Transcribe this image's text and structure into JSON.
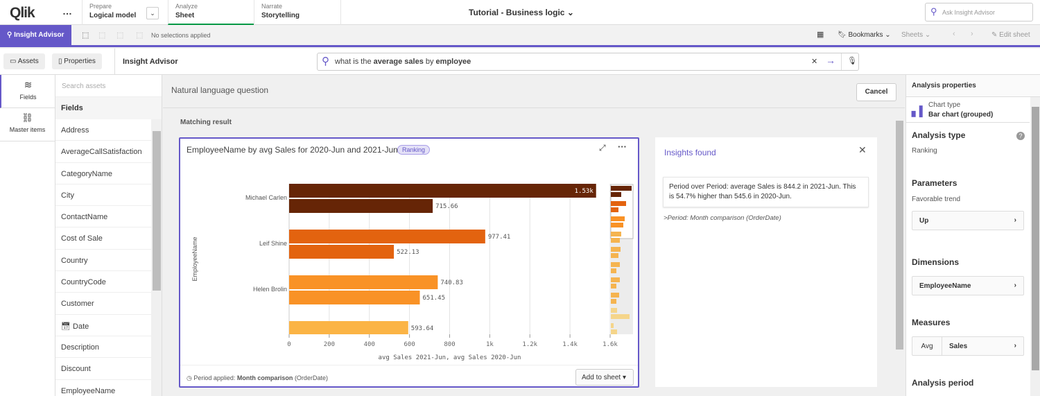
{
  "topbar": {
    "logo": "Qlik",
    "menu": "…",
    "prepare_label": "Prepare",
    "prepare_value": "Logical model",
    "analyze_label": "Analyze",
    "analyze_value": "Sheet",
    "narrate_label": "Narrate",
    "narrate_value": "Storytelling",
    "app_title": "Tutorial - Business logic",
    "ask_placeholder": "Ask Insight Advisor"
  },
  "toolbar": {
    "insight_advisor": "Insight Advisor",
    "selections": "No selections applied",
    "bookmarks": "Bookmarks",
    "sheets": "Sheets",
    "edit_sheet": "Edit sheet"
  },
  "subbar": {
    "assets": "Assets",
    "properties": "Properties",
    "title": "Insight Advisor",
    "query_prefix": "what is the ",
    "query_b1": "average sales",
    "query_mid": " by ",
    "query_b2": "employee"
  },
  "leftnav": {
    "fields": "Fields",
    "master_items": "Master items"
  },
  "assets": {
    "search_placeholder": "Search assets",
    "header": "Fields",
    "items": [
      "Address",
      "AverageCallSatisfaction",
      "CategoryName",
      "City",
      "ContactName",
      "Cost of Sale",
      "Country",
      "CountryCode",
      "Customer",
      "Date",
      "Description",
      "Discount",
      "EmployeeName"
    ]
  },
  "main": {
    "nlq_title": "Natural language question",
    "cancel": "Cancel",
    "matching": "Matching result"
  },
  "card": {
    "title": "EmployeeName by avg Sales for 2020-Jun and 2021-Jun",
    "badge": "Ranking",
    "period_label": "Period applied:",
    "period_value": "Month comparison",
    "period_field": "(OrderDate)",
    "add_to_sheet": "Add to sheet"
  },
  "chart_data": {
    "type": "bar",
    "orientation": "horizontal",
    "categories": [
      "Michael Carlen",
      "Leif Shine",
      "Helen Brolin",
      ""
    ],
    "series": [
      {
        "values": [
          1530,
          977.41,
          740.83,
          593.64
        ]
      },
      {
        "values": [
          715.66,
          522.13,
          651.45,
          null
        ]
      }
    ],
    "data_labels": [
      [
        "1.53k",
        "977.41",
        "740.83",
        "593.64"
      ],
      [
        "715.66",
        "522.13",
        "651.45",
        ""
      ]
    ],
    "colors": [
      "#662506",
      "#e3630f",
      "#f99226",
      "#fbb445"
    ],
    "xlabel": "avg Sales 2021-Jun, avg Sales 2020-Jun",
    "ylabel": "EmployeeName",
    "xlim": [
      0,
      1600
    ],
    "xticks": [
      "0",
      "200",
      "400",
      "600",
      "800",
      "1k",
      "1.2k",
      "1.4k",
      "1.6k"
    ],
    "grid": true
  },
  "insights": {
    "title": "Insights found",
    "text": "Period over Period: average Sales is 844.2 in 2021-Jun. This is 54.7% higher than 545.6 in 2020-Jun.",
    "note": ">Period: Month comparison (OrderDate)"
  },
  "props": {
    "title": "Analysis properties",
    "chart_type_label": "Chart type",
    "chart_type": "Bar chart (grouped)",
    "analysis_type": "Analysis type",
    "analysis_value": "Ranking",
    "parameters": "Parameters",
    "favorable": "Favorable trend",
    "trend": "Up",
    "dimensions": "Dimensions",
    "dimension": "EmployeeName",
    "measures": "Measures",
    "agg": "Avg",
    "measure": "Sales",
    "period": "Analysis period"
  }
}
